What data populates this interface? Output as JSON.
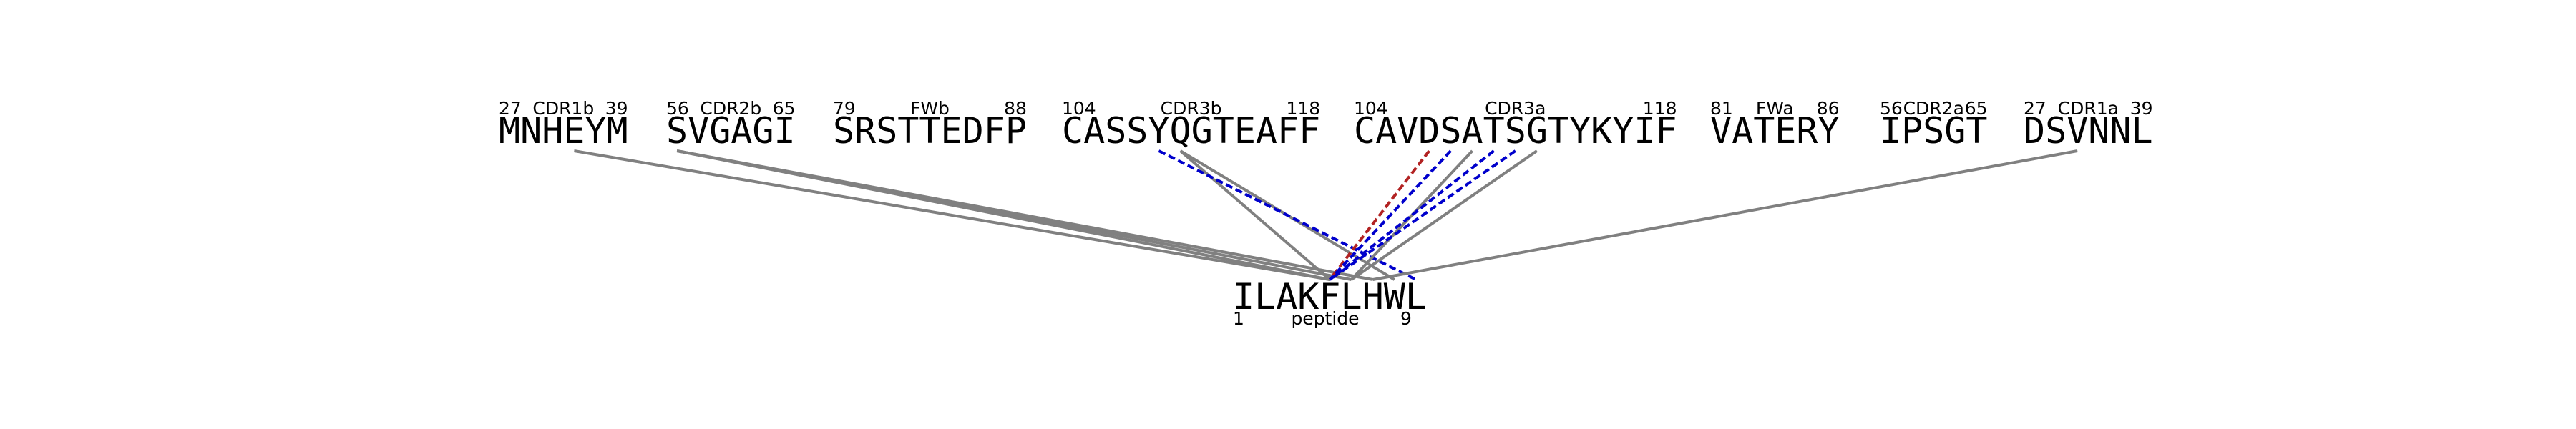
{
  "segments": [
    {
      "id": "cdr1b",
      "sequence": "MNHEYM",
      "region": "CDR1b",
      "start": "27",
      "end": "39"
    },
    {
      "id": "cdr2b",
      "sequence": "SVGAGI",
      "region": "CDR2b",
      "start": "56",
      "end": "65"
    },
    {
      "id": "fwb",
      "sequence": "SRSTTEDFP",
      "region": "FWb",
      "start": "79",
      "end": "88"
    },
    {
      "id": "cdr3b",
      "sequence": "CASSYQGTEAFF",
      "region": "CDR3b",
      "start": "104",
      "end": "118"
    },
    {
      "id": "cdr3a",
      "sequence": "CAVDSATSGTYKYIF",
      "region": "CDR3a",
      "start": "104",
      "end": "118"
    },
    {
      "id": "fwa",
      "sequence": "VATERY",
      "region": "FWa",
      "start": "81",
      "end": "86"
    },
    {
      "id": "cdr2a",
      "sequence": "IPSGT",
      "region": "CDR2a",
      "start": "56",
      "end": "65"
    },
    {
      "id": "cdr1a",
      "sequence": "DSVNNL",
      "region": "CDR1a",
      "start": "27",
      "end": "39"
    }
  ],
  "peptide": {
    "sequence": "ILAKFLHWL",
    "label": "peptide",
    "start": "1",
    "end": "9"
  },
  "colors": {
    "default_contact": "#808080",
    "dashed_contact": "#0000CC",
    "highlight_contact": "#B22222"
  },
  "contacts": [
    {
      "segment": "cdr1b",
      "residue": 4,
      "peptide_residue": 5,
      "color": "gray",
      "style": "solid"
    },
    {
      "segment": "cdr2b",
      "residue": 1,
      "peptide_residue": 5,
      "color": "gray",
      "style": "solid"
    },
    {
      "segment": "cdr2b",
      "residue": 1,
      "peptide_residue": 6,
      "color": "gray",
      "style": "solid"
    },
    {
      "segment": "cdr2b",
      "residue": 1,
      "peptide_residue": 7,
      "color": "gray",
      "style": "solid"
    },
    {
      "segment": "cdr3b",
      "residue": 6,
      "peptide_residue": 5,
      "color": "gray",
      "style": "solid"
    },
    {
      "segment": "cdr3b",
      "residue": 6,
      "peptide_residue": 8,
      "color": "gray",
      "style": "solid"
    },
    {
      "segment": "cdr3b",
      "residue": 5,
      "peptide_residue": 9,
      "color": "blue",
      "style": "dashed"
    },
    {
      "segment": "cdr3a",
      "residue": 4,
      "peptide_residue": 5,
      "color": "red",
      "style": "dashed"
    },
    {
      "segment": "cdr3a",
      "residue": 5,
      "peptide_residue": 5,
      "color": "blue",
      "style": "dashed"
    },
    {
      "segment": "cdr3a",
      "residue": 6,
      "peptide_residue": 6,
      "color": "gray",
      "style": "solid"
    },
    {
      "segment": "cdr3a",
      "residue": 7,
      "peptide_residue": 5,
      "color": "blue",
      "style": "dashed"
    },
    {
      "segment": "cdr3a",
      "residue": 8,
      "peptide_residue": 5,
      "color": "blue",
      "style": "dashed"
    },
    {
      "segment": "cdr3a",
      "residue": 9,
      "peptide_residue": 6,
      "color": "gray",
      "style": "solid"
    },
    {
      "segment": "cdr1a",
      "residue": 3,
      "peptide_residue": 7,
      "color": "gray",
      "style": "solid"
    }
  ]
}
